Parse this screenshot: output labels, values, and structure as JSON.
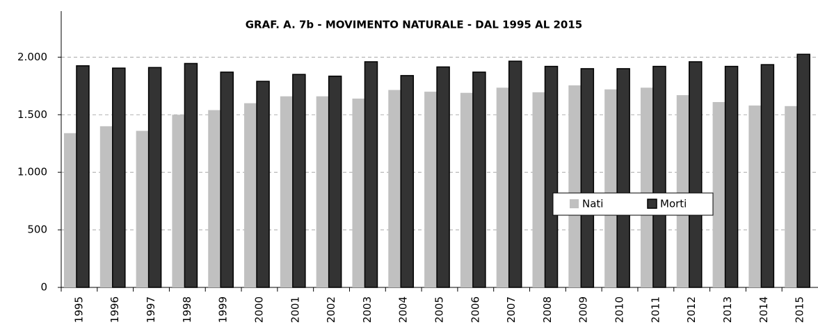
{
  "chart_data": {
    "type": "bar",
    "title": "GRAF. A. 7b - MOVIMENTO NATURALE - DAL 1995 AL 2015",
    "categories": [
      "1995",
      "1996",
      "1997",
      "1998",
      "1999",
      "2000",
      "2001",
      "2002",
      "2003",
      "2004",
      "2005",
      "2006",
      "2007",
      "2008",
      "2009",
      "2010",
      "2011",
      "2012",
      "2013",
      "2014",
      "2015"
    ],
    "series": [
      {
        "name": "Nati",
        "color": "#c0c0c0",
        "values": [
          1340,
          1400,
          1360,
          1500,
          1540,
          1600,
          1660,
          1660,
          1640,
          1715,
          1700,
          1690,
          1735,
          1695,
          1755,
          1720,
          1735,
          1670,
          1610,
          1580,
          1575
        ]
      },
      {
        "name": "Morti",
        "color": "#333333",
        "values": [
          1925,
          1905,
          1910,
          1945,
          1870,
          1790,
          1850,
          1835,
          1960,
          1840,
          1915,
          1870,
          1965,
          1920,
          1900,
          1900,
          1920,
          1960,
          1920,
          1935,
          2025
        ]
      }
    ],
    "ylim": [
      0,
      2400
    ],
    "yticks": [
      0,
      500,
      {
        "value": 1000,
        "label": "1.000"
      },
      {
        "value": 1500,
        "label": "1.500"
      },
      {
        "value": 2000,
        "label": "2.000"
      }
    ],
    "grid": true,
    "legend": "right"
  }
}
